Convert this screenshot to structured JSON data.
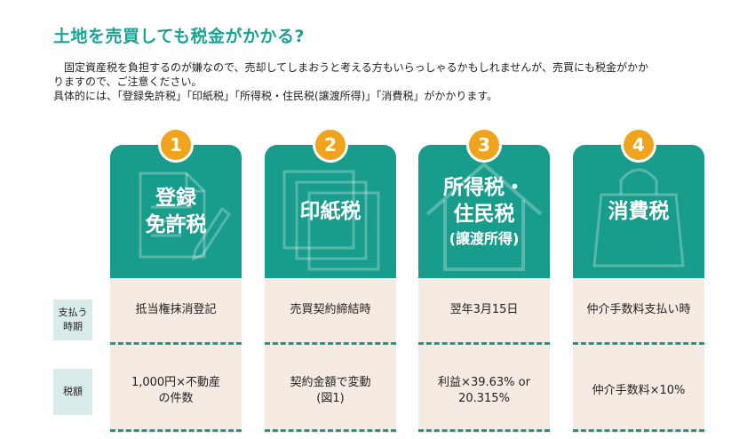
{
  "title": "土地を売買しても税金がかかる?",
  "intro": {
    "line1": "固定資産税を負担するのが嫌なので、売却してしまおうと考える方もいらっしゃるかもしれませんが、売買にも税金がかか",
    "line2": "りますので、ご注意ください。",
    "line3": "具体的には、「登録免許税」「印紙税」「所得税・住民税(譲渡所得)」「消費税」がかかります。"
  },
  "row_labels": {
    "payment_timing": "支払う\n時期",
    "tax_amount": "税額"
  },
  "taxes": [
    {
      "number": "1",
      "name_line1": "登録",
      "name_line2": "免許税",
      "sub": "",
      "icon": "document-pencil-icon",
      "timing": "抵当権抹消登記",
      "amount_line1": "1,000円×不動産",
      "amount_line2": "の件数"
    },
    {
      "number": "2",
      "name_line1": "印紙税",
      "name_line2": "",
      "sub": "",
      "icon": "stacked-papers-icon",
      "timing": "売買契約締結時",
      "amount_line1": "契約金額で変動",
      "amount_line2": "(図1)"
    },
    {
      "number": "3",
      "name_line1": "所得税・",
      "name_line2": "住民税",
      "sub": "(譲渡所得)",
      "icon": "house-icon",
      "timing": "翌年3月15日",
      "amount_line1": "利益×39.63% or",
      "amount_line2": "20.315%"
    },
    {
      "number": "4",
      "name_line1": "消費税",
      "name_line2": "",
      "sub": "",
      "icon": "shopping-bag-icon",
      "timing": "仲介手数料支払い時",
      "amount_line1": "仲介手数料×10%",
      "amount_line2": ""
    }
  ],
  "colors": {
    "teal": "#189c8c",
    "title_teal": "#1aa394",
    "badge_orange": "#f0a41e",
    "body_beige": "#f6ebe3",
    "label_bg": "#d9ece9"
  }
}
